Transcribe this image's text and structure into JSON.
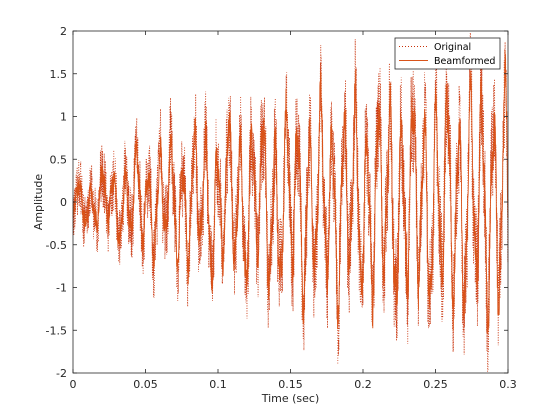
{
  "chart_data": {
    "type": "line",
    "title": "",
    "xlabel": "Time (sec)",
    "ylabel": "Amplitude",
    "xlim": [
      0,
      0.3
    ],
    "ylim": [
      -2,
      2
    ],
    "xticks": [
      0,
      0.05,
      0.1,
      0.15,
      0.2,
      0.25,
      0.3
    ],
    "xtick_labels": [
      "0",
      "0.05",
      "0.1",
      "0.15",
      "0.2",
      "0.25",
      "0.3"
    ],
    "yticks": [
      -2,
      -1.5,
      -1,
      -0.5,
      0,
      0.5,
      1,
      1.5,
      2
    ],
    "ytick_labels": [
      "-2",
      "-1.5",
      "-1",
      "-0.5",
      "0",
      "0.5",
      "1",
      "1.5",
      "2"
    ],
    "grid": false,
    "legend_location": "top-right",
    "series": [
      {
        "name": "Original",
        "color": "#c8320a",
        "style": "dotted",
        "seed": 7,
        "noise": 0.55
      },
      {
        "name": "Beamformed",
        "color": "#d95319",
        "style": "solid",
        "seed": 7,
        "noise": 0.18
      }
    ],
    "sample_count": 2400,
    "envelope": {
      "x": [
        0,
        0.02,
        0.05,
        0.1,
        0.15,
        0.2,
        0.25,
        0.3
      ],
      "amplitude": [
        0.18,
        0.3,
        0.55,
        0.8,
        1.0,
        1.1,
        1.2,
        1.3
      ]
    }
  }
}
